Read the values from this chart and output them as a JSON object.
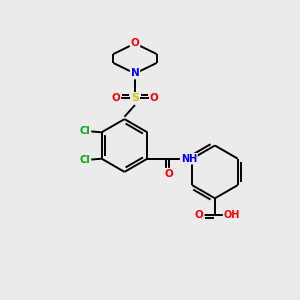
{
  "background_color": "#ebebeb",
  "atom_colors": {
    "C": "#000000",
    "H": "#5aacac",
    "N": "#0000ff",
    "O": "#ff0000",
    "S": "#cccc00",
    "Cl": "#00aa00"
  },
  "bond_color": "#000000",
  "bond_width": 1.4
}
